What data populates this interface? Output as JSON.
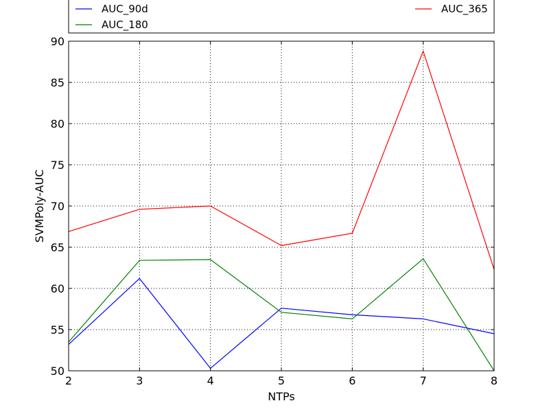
{
  "chart_data": {
    "type": "line",
    "title": "",
    "xlabel": "NTPs",
    "ylabel": "SVMPoly-AUC",
    "x": [
      2,
      3,
      4,
      5,
      6,
      7,
      8
    ],
    "xlim": [
      2,
      8
    ],
    "ylim": [
      50,
      90
    ],
    "xticks": [
      "2",
      "3",
      "4",
      "5",
      "6",
      "7",
      "8"
    ],
    "yticks": [
      "50",
      "55",
      "60",
      "65",
      "70",
      "75",
      "80",
      "85",
      "90"
    ],
    "grid": true,
    "legend_position": "top, above plot",
    "series": [
      {
        "name": "AUC_90d",
        "color": "#0000ff",
        "values": [
          53.2,
          61.2,
          50.3,
          57.6,
          56.8,
          56.3,
          54.5
        ]
      },
      {
        "name": "AUC_180",
        "color": "#008000",
        "values": [
          53.5,
          63.4,
          63.5,
          57.1,
          56.3,
          63.6,
          50.0
        ]
      },
      {
        "name": "AUC_365",
        "color": "#ff0000",
        "values": [
          66.9,
          69.6,
          70.0,
          65.2,
          66.7,
          88.8,
          62.3
        ]
      }
    ]
  }
}
